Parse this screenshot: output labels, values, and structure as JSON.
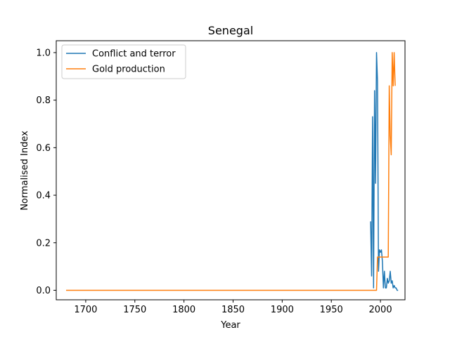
{
  "chart_data": {
    "type": "line",
    "title": "Senegal",
    "xlabel": "Year",
    "ylabel": "Normalised Index",
    "xlim": [
      1670,
      2025
    ],
    "ylim": [
      -0.04,
      1.05
    ],
    "xticks": [
      1700,
      1750,
      1800,
      1850,
      1900,
      1950,
      2000
    ],
    "yticks": [
      0.0,
      0.2,
      0.4,
      0.6,
      0.8,
      1.0
    ],
    "xtick_labels": [
      "1700",
      "1750",
      "1800",
      "1850",
      "1900",
      "1950",
      "2000"
    ],
    "ytick_labels": [
      "0.0",
      "0.2",
      "0.4",
      "0.6",
      "0.8",
      "1.0"
    ],
    "grid": false,
    "legend_position": "upper-left",
    "series": [
      {
        "name": "Conflict and terror",
        "color": "#1f77b4",
        "x": [
          1990,
          1991,
          1992,
          1993,
          1994,
          1995,
          1996,
          1997,
          1998,
          1999,
          2000,
          2001,
          2002,
          2003,
          2004,
          2005,
          2006,
          2007,
          2008,
          2009,
          2010,
          2011,
          2012,
          2013,
          2014,
          2015,
          2016,
          2017,
          2018
        ],
        "y": [
          0.29,
          0.06,
          0.73,
          0.01,
          0.84,
          0.45,
          1.0,
          0.88,
          0.08,
          0.17,
          0.16,
          0.17,
          0.12,
          0.01,
          0.08,
          0.01,
          0.01,
          0.05,
          0.03,
          0.04,
          0.08,
          0.03,
          0.04,
          0.01,
          0.02,
          0.01,
          0.01,
          0.0,
          0.0
        ]
      },
      {
        "name": "Gold production",
        "color": "#ff7f0e",
        "x": [
          1680,
          1994,
          1995,
          1996,
          1997,
          1998,
          1999,
          2000,
          2001,
          2002,
          2003,
          2004,
          2005,
          2006,
          2007,
          2008,
          2009,
          2010,
          2011,
          2012,
          2013,
          2014,
          2015
        ],
        "y": [
          0.0,
          0.0,
          0.0,
          0.0,
          0.14,
          0.14,
          0.14,
          0.14,
          0.14,
          0.14,
          0.14,
          0.14,
          0.14,
          0.14,
          0.14,
          0.14,
          0.86,
          0.65,
          0.57,
          1.0,
          0.86,
          1.0,
          0.86
        ]
      }
    ]
  }
}
